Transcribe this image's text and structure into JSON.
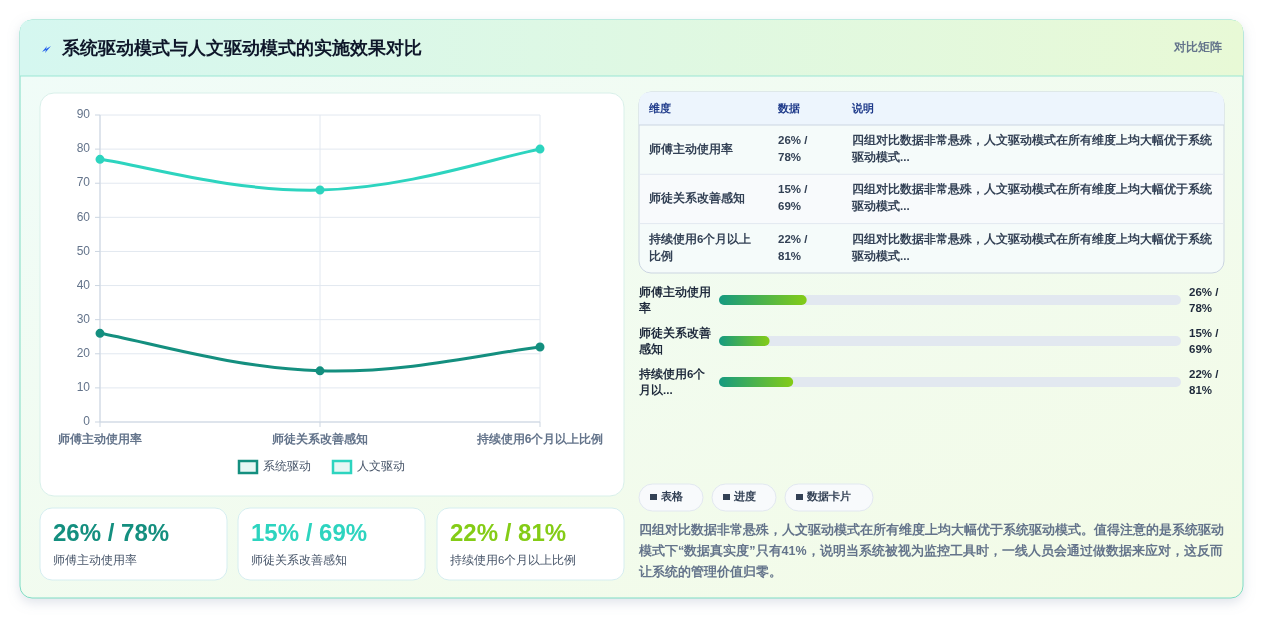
{
  "chart_data": [
    {
      "type": "other",
      "title": "系统驱动模式与人文驱动模式的实施效果对比",
      "annotations": [
        "对比矩阵"
      ]
    },
    {
      "type": "line",
      "categories": [
        "师傅主动使用率",
        "师徒关系改善感知",
        "持续使用6个月以上比例"
      ],
      "series": [
        {
          "name": "系统驱动",
          "color": "#148f7f",
          "values": [
            26,
            15,
            22
          ]
        },
        {
          "name": "人文驱动",
          "color": "#2dd4bf",
          "values": [
            77,
            68,
            80
          ]
        }
      ],
      "ylim": [
        0,
        90
      ],
      "yticks": [
        0,
        10,
        20,
        30,
        40,
        50,
        60,
        70,
        80,
        90
      ],
      "grid": true,
      "legend": "bottom",
      "marker": "circle",
      "line_style": "solid"
    },
    {
      "type": "other",
      "categories": [
        "维度",
        "数据",
        "说明"
      ],
      "y_categories": [
        "师傅主动使用率",
        "师徒关系改善感知",
        "持续使用6个月以上比例"
      ],
      "cell_labels": [
        [
          "26% / 78%",
          "四组对比数据非常悬殊，人文驱动模式在所有维度上均大幅优于系统驱动模式..."
        ],
        [
          "15% / 69%",
          "四组对比数据非常悬殊，人文驱动模式在所有维度上均大幅优于系统驱动模式..."
        ],
        [
          "22% / 81%",
          "四组对比数据非常悬殊，人文驱动模式在所有维度上均大幅优于系统驱动模式..."
        ]
      ]
    },
    {
      "type": "bar",
      "orientation": "horizontal",
      "categories": [
        "师傅主动使用率",
        "师徒关系改善感知",
        "持续使用6个月以..."
      ],
      "values": [
        26,
        15,
        22
      ],
      "xlim": [
        0,
        137
      ],
      "color": "#159a80",
      "value_labels": [
        "26% / 78%",
        "15% / 69%",
        "22% / 81%"
      ]
    },
    {
      "type": "other",
      "categories": [
        "师傅主动使用率",
        "师徒关系改善感知",
        "持续使用6个月以上比例"
      ],
      "value_labels": [
        "26% / 78%",
        "15% / 69%",
        "22% / 81%"
      ]
    },
    {
      "type": "other",
      "categories": [
        "表格",
        "进度",
        "数据卡片"
      ],
      "annotations": [
        "四组对比数据非常悬殊，人文驱动模式在所有维度上均大幅优于系统驱动模式。值得注意的是系统驱动模式下“数据真实度”只有41%，说明当系统被视为监控工具时，一线人员会通过做数据来应对，这反而让系统的管理价值归零。"
      ]
    }
  ]
}
